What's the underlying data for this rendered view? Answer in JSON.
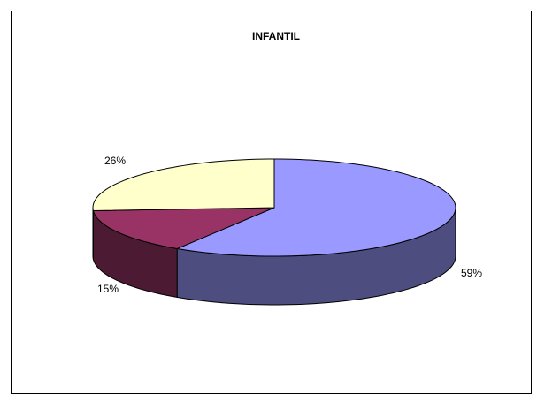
{
  "chart_data": {
    "type": "pie",
    "title": "INFANTIL",
    "values": [
      59,
      15,
      26
    ],
    "value_labels": [
      "59%",
      "15%",
      "26%"
    ],
    "colors": [
      "#9999ff",
      "#993366",
      "#ffffcc"
    ]
  }
}
